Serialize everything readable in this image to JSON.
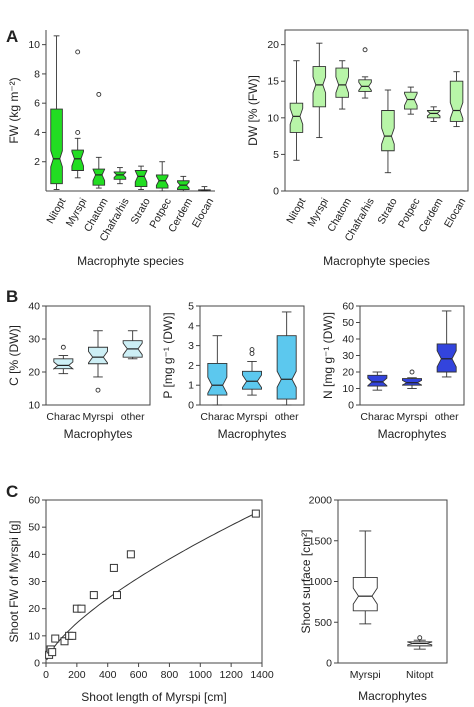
{
  "panel_labels": [
    "A",
    "B",
    "C"
  ],
  "colors": {
    "green_bright": "#22dd22",
    "green_light": "#b8f5a8",
    "cyan": "#5cc8ee",
    "cyan_light": "#cdeff5",
    "blue": "#3344dd",
    "axis": "#444444"
  },
  "chart_data": [
    {
      "id": "A-left",
      "type": "box",
      "ylabel": "FW (kg m⁻²)",
      "xlabel": "Macrophyte species",
      "ylim": [
        0,
        11
      ],
      "yticks": [
        2,
        4,
        6,
        8,
        10
      ],
      "categories": [
        "Nitopt",
        "Myrspi",
        "Chatom",
        "Chafra/his",
        "Strato",
        "Potpec",
        "Cerdem",
        "Elocan"
      ],
      "boxes": [
        {
          "min": 0.1,
          "q1": 0.5,
          "median": 2.2,
          "q3": 5.6,
          "max": 10.6,
          "outliers": []
        },
        {
          "min": 0.9,
          "q1": 1.4,
          "median": 2.2,
          "q3": 2.8,
          "max": 3.6,
          "outliers": [
            4.0,
            9.5
          ]
        },
        {
          "min": 0.2,
          "q1": 0.4,
          "median": 1.1,
          "q3": 1.5,
          "max": 2.3,
          "outliers": [
            6.6
          ]
        },
        {
          "min": 0.5,
          "q1": 0.8,
          "median": 1.1,
          "q3": 1.3,
          "max": 1.6,
          "outliers": []
        },
        {
          "min": 0.1,
          "q1": 0.3,
          "median": 1.0,
          "q3": 1.4,
          "max": 1.7,
          "outliers": []
        },
        {
          "min": 0.0,
          "q1": 0.2,
          "median": 0.7,
          "q3": 1.1,
          "max": 2.0,
          "outliers": []
        },
        {
          "min": 0.0,
          "q1": 0.1,
          "median": 0.4,
          "q3": 0.7,
          "max": 1.0,
          "outliers": []
        },
        {
          "min": 0.0,
          "q1": 0.02,
          "median": 0.05,
          "q3": 0.08,
          "max": 0.3,
          "outliers": []
        }
      ]
    },
    {
      "id": "A-right",
      "type": "box",
      "ylabel": "DW [% (FW)]",
      "xlabel": "Macrophyte species",
      "ylim": [
        0,
        22
      ],
      "yticks": [
        0,
        5,
        10,
        15,
        20
      ],
      "categories": [
        "Nitopt",
        "Myrspi",
        "Chatom",
        "Chafra/his",
        "Strato",
        "Potpec",
        "Cerdem",
        "Elocan"
      ],
      "boxes": [
        {
          "min": 4.2,
          "q1": 8.0,
          "median": 10.2,
          "q3": 12.0,
          "max": 17.8,
          "outliers": []
        },
        {
          "min": 7.3,
          "q1": 11.5,
          "median": 14.5,
          "q3": 17.0,
          "max": 20.2,
          "outliers": []
        },
        {
          "min": 11.2,
          "q1": 12.8,
          "median": 14.5,
          "q3": 16.8,
          "max": 17.8,
          "outliers": []
        },
        {
          "min": 12.7,
          "q1": 13.6,
          "median": 14.3,
          "q3": 15.2,
          "max": 15.6,
          "outliers": [
            19.3
          ]
        },
        {
          "min": 2.5,
          "q1": 5.5,
          "median": 7.5,
          "q3": 11.0,
          "max": 13.8,
          "outliers": []
        },
        {
          "min": 10.5,
          "q1": 11.2,
          "median": 12.5,
          "q3": 13.5,
          "max": 14.2,
          "outliers": []
        },
        {
          "min": 9.5,
          "q1": 10.0,
          "median": 10.6,
          "q3": 11.0,
          "max": 11.5,
          "outliers": []
        },
        {
          "min": 8.8,
          "q1": 9.5,
          "median": 11.0,
          "q3": 15.0,
          "max": 16.3,
          "outliers": []
        }
      ]
    },
    {
      "id": "B-C",
      "type": "box",
      "ylabel": "C [% (DW)]",
      "xlabel": "Macrophytes",
      "ylim": [
        10,
        40
      ],
      "yticks": [
        10,
        20,
        30,
        40
      ],
      "categories": [
        "Charac",
        "Myrspi",
        "other"
      ],
      "boxes": [
        {
          "min": 19.5,
          "q1": 21.0,
          "median": 22.0,
          "q3": 24.0,
          "max": 25.0,
          "outliers": [
            27.5
          ]
        },
        {
          "min": 18.5,
          "q1": 22.5,
          "median": 24.5,
          "q3": 27.5,
          "max": 32.5,
          "outliers": [
            14.5
          ]
        },
        {
          "min": 24.0,
          "q1": 24.5,
          "median": 27.0,
          "q3": 29.5,
          "max": 32.5,
          "outliers": []
        }
      ]
    },
    {
      "id": "B-P",
      "type": "box",
      "ylabel": "P [mg g⁻¹ (DW)]",
      "xlabel": "Macrophytes",
      "ylim": [
        0,
        5
      ],
      "yticks": [
        0,
        1,
        2,
        3,
        4,
        5
      ],
      "categories": [
        "Charac",
        "Myrspi",
        "other"
      ],
      "boxes": [
        {
          "min": 0.0,
          "q1": 0.5,
          "median": 1.0,
          "q3": 2.1,
          "max": 3.5,
          "outliers": []
        },
        {
          "min": 0.5,
          "q1": 0.8,
          "median": 1.2,
          "q3": 1.7,
          "max": 2.2,
          "outliers": [
            2.6,
            2.8
          ]
        },
        {
          "min": 0.0,
          "q1": 0.3,
          "median": 1.3,
          "q3": 3.5,
          "max": 4.7,
          "outliers": []
        }
      ]
    },
    {
      "id": "B-N",
      "type": "box",
      "ylabel": "N [mg g⁻¹ (DW)]",
      "xlabel": "Macrophytes",
      "ylim": [
        0,
        60
      ],
      "yticks": [
        0,
        10,
        20,
        30,
        40,
        50,
        60
      ],
      "categories": [
        "Charac",
        "Myrspi",
        "other"
      ],
      "boxes": [
        {
          "min": 9.0,
          "q1": 11.5,
          "median": 14.0,
          "q3": 18.0,
          "max": 20.0,
          "outliers": []
        },
        {
          "min": 10.0,
          "q1": 12.0,
          "median": 13.5,
          "q3": 16.0,
          "max": 16.5,
          "outliers": [
            20.0
          ]
        },
        {
          "min": 17.0,
          "q1": 20.0,
          "median": 28.0,
          "q3": 37.0,
          "max": 57.0,
          "outliers": []
        }
      ]
    },
    {
      "id": "C-left",
      "type": "scatter",
      "xlabel": "Shoot length of Myrspi [cm]",
      "ylabel": "Shoot FW of Myrspi [g]",
      "xlim": [
        0,
        1400
      ],
      "ylim": [
        0,
        60
      ],
      "xticks": [
        0,
        200,
        400,
        600,
        800,
        1000,
        1200,
        1400
      ],
      "yticks": [
        0,
        10,
        20,
        30,
        40,
        50,
        60
      ],
      "points": [
        {
          "x": 20,
          "y": 3
        },
        {
          "x": 30,
          "y": 5
        },
        {
          "x": 40,
          "y": 4
        },
        {
          "x": 60,
          "y": 9
        },
        {
          "x": 120,
          "y": 8
        },
        {
          "x": 150,
          "y": 10
        },
        {
          "x": 170,
          "y": 10
        },
        {
          "x": 200,
          "y": 20
        },
        {
          "x": 230,
          "y": 20
        },
        {
          "x": 310,
          "y": 25
        },
        {
          "x": 440,
          "y": 35
        },
        {
          "x": 460,
          "y": 25
        },
        {
          "x": 550,
          "y": 40
        },
        {
          "x": 1360,
          "y": 55
        }
      ],
      "fit": {
        "kind": "power",
        "a": 0.38,
        "b": 0.69
      }
    },
    {
      "id": "C-right",
      "type": "box",
      "ylabel": "Shoot surface [cm²]",
      "xlabel": "Macrophytes",
      "ylim": [
        0,
        2000
      ],
      "yticks": [
        0,
        500,
        1000,
        1500,
        2000
      ],
      "categories": [
        "Myrspi",
        "Nitopt"
      ],
      "boxes": [
        {
          "min": 480,
          "q1": 640,
          "median": 820,
          "q3": 1050,
          "max": 1620,
          "outliers": []
        },
        {
          "min": 170,
          "q1": 210,
          "median": 240,
          "q3": 260,
          "max": 280,
          "outliers": [
            310
          ]
        }
      ]
    }
  ]
}
